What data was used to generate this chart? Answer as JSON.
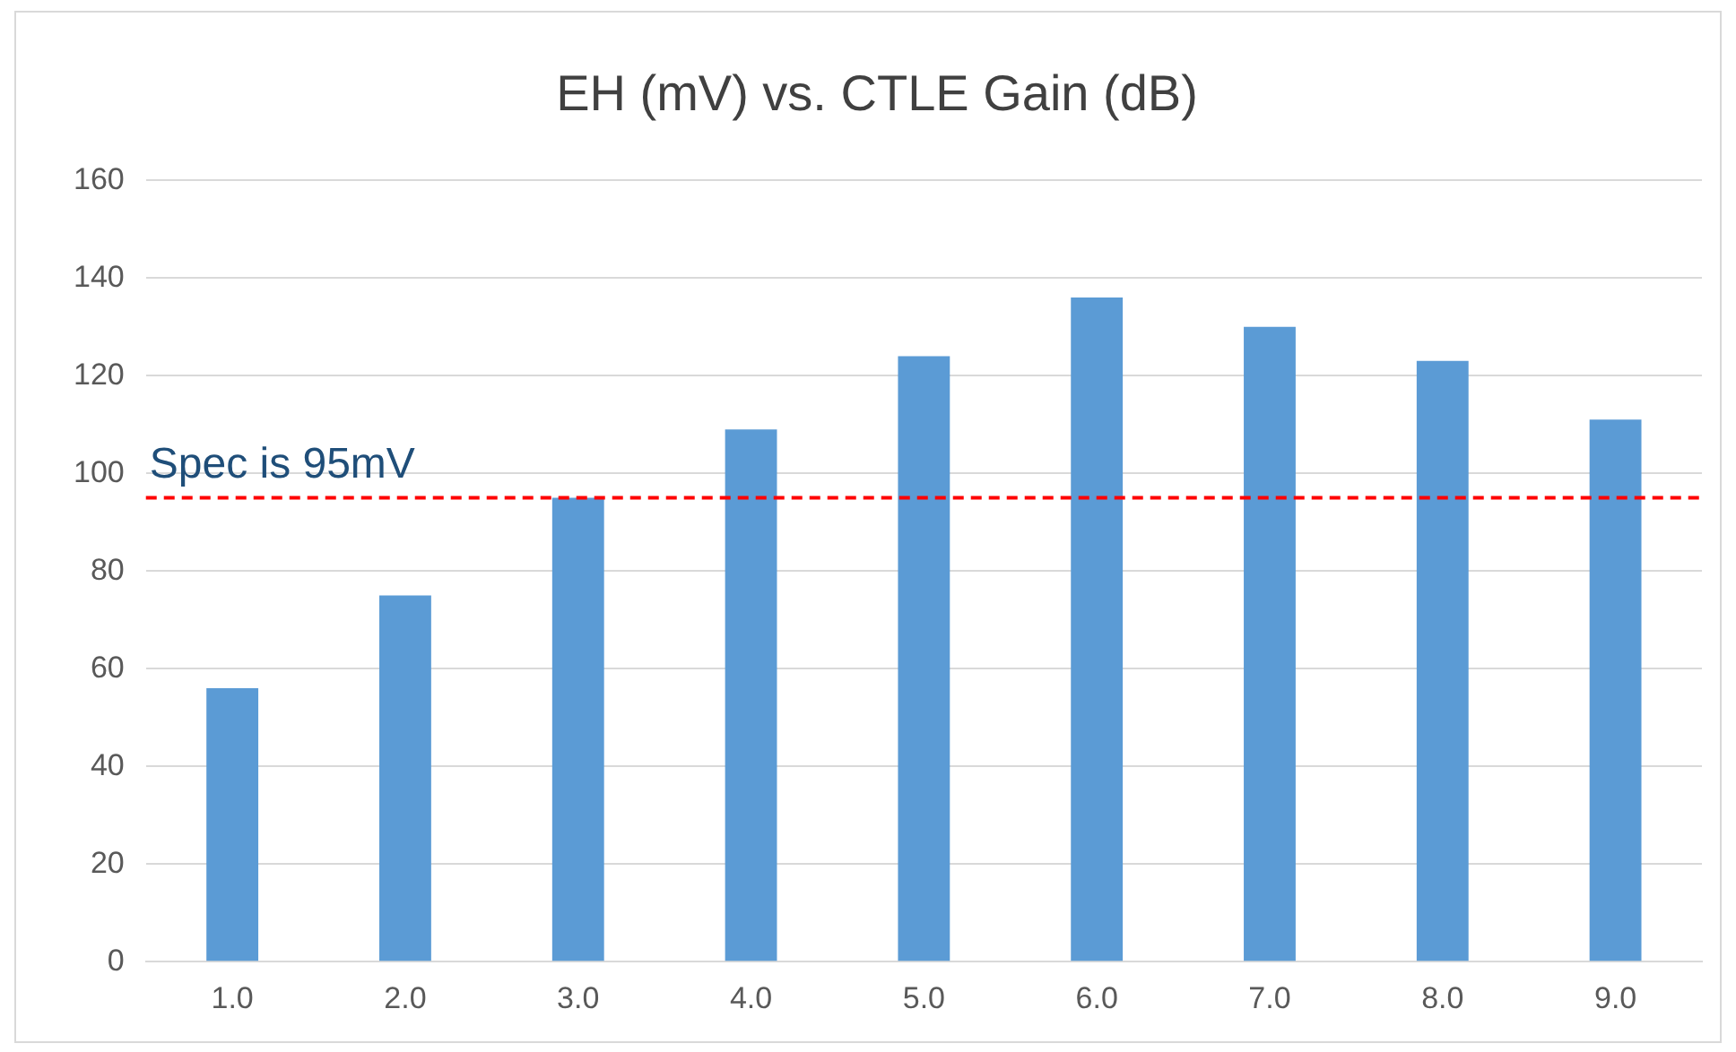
{
  "chart_data": {
    "type": "bar",
    "title": "EH (mV) vs. CTLE Gain (dB)",
    "categories": [
      "1.0",
      "2.0",
      "3.0",
      "4.0",
      "5.0",
      "6.0",
      "7.0",
      "8.0",
      "9.0"
    ],
    "values": [
      56,
      75,
      95,
      109,
      124,
      136,
      130,
      123,
      111
    ],
    "color": "#5b9bd5",
    "ylim": [
      0,
      160
    ],
    "yticks": [
      0,
      20,
      40,
      60,
      80,
      100,
      120,
      140,
      160
    ],
    "grid": "y",
    "legend": false,
    "ref_lines": [
      {
        "axis": "y",
        "value": 95,
        "label": "Spec is 95mV",
        "color": "#ff0000",
        "line_style": "dashed"
      }
    ]
  }
}
